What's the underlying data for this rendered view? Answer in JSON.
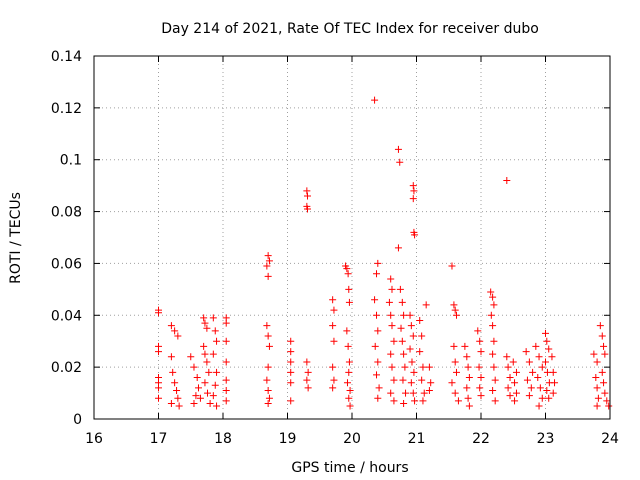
{
  "chart_data": {
    "type": "scatter",
    "title": "Day 214 of 2021, Rate Of TEC Index for receiver dubo",
    "xlabel": "GPS time / hours",
    "ylabel": "ROTI / TECUs",
    "xlim": [
      16,
      24
    ],
    "ylim": [
      0,
      0.14
    ],
    "xticks": [
      16,
      17,
      18,
      19,
      20,
      21,
      22,
      23,
      24
    ],
    "xtick_labels": [
      "16",
      "17",
      "18",
      "19",
      "20",
      "21",
      "22",
      "23",
      "24"
    ],
    "yticks": [
      0,
      0.02,
      0.04,
      0.06,
      0.08,
      0.1,
      0.12,
      0.14
    ],
    "ytick_labels": [
      "0",
      "0.02",
      "0.04",
      "0.06",
      "0.08",
      "0.1",
      "0.12",
      "0.14"
    ],
    "grid": true,
    "marker": "+",
    "color": "#ff0000",
    "series": [
      {
        "name": "ROTI",
        "points": [
          [
            17.0,
            0.042
          ],
          [
            17.0,
            0.041
          ],
          [
            17.0,
            0.028
          ],
          [
            17.0,
            0.026
          ],
          [
            17.0,
            0.016
          ],
          [
            17.0,
            0.014
          ],
          [
            17.0,
            0.012
          ],
          [
            17.0,
            0.008
          ],
          [
            17.2,
            0.036
          ],
          [
            17.25,
            0.034
          ],
          [
            17.3,
            0.032
          ],
          [
            17.2,
            0.024
          ],
          [
            17.22,
            0.018
          ],
          [
            17.25,
            0.014
          ],
          [
            17.28,
            0.011
          ],
          [
            17.3,
            0.008
          ],
          [
            17.32,
            0.005
          ],
          [
            17.2,
            0.006
          ],
          [
            17.5,
            0.024
          ],
          [
            17.55,
            0.02
          ],
          [
            17.6,
            0.016
          ],
          [
            17.62,
            0.012
          ],
          [
            17.58,
            0.009
          ],
          [
            17.55,
            0.006
          ],
          [
            17.65,
            0.008
          ],
          [
            17.7,
            0.039
          ],
          [
            17.72,
            0.037
          ],
          [
            17.75,
            0.035
          ],
          [
            17.7,
            0.028
          ],
          [
            17.72,
            0.025
          ],
          [
            17.75,
            0.022
          ],
          [
            17.78,
            0.018
          ],
          [
            17.72,
            0.014
          ],
          [
            17.76,
            0.01
          ],
          [
            17.8,
            0.006
          ],
          [
            17.85,
            0.039
          ],
          [
            17.88,
            0.034
          ],
          [
            17.9,
            0.03
          ],
          [
            17.85,
            0.025
          ],
          [
            17.9,
            0.018
          ],
          [
            17.88,
            0.013
          ],
          [
            17.85,
            0.009
          ],
          [
            17.9,
            0.005
          ],
          [
            18.05,
            0.039
          ],
          [
            18.05,
            0.037
          ],
          [
            18.05,
            0.03
          ],
          [
            18.05,
            0.022
          ],
          [
            18.05,
            0.015
          ],
          [
            18.05,
            0.011
          ],
          [
            18.05,
            0.007
          ],
          [
            18.7,
            0.063
          ],
          [
            18.72,
            0.061
          ],
          [
            18.68,
            0.059
          ],
          [
            18.7,
            0.055
          ],
          [
            18.68,
            0.036
          ],
          [
            18.7,
            0.032
          ],
          [
            18.72,
            0.028
          ],
          [
            18.7,
            0.02
          ],
          [
            18.68,
            0.015
          ],
          [
            18.7,
            0.011
          ],
          [
            18.72,
            0.008
          ],
          [
            18.7,
            0.006
          ],
          [
            19.05,
            0.03
          ],
          [
            19.05,
            0.026
          ],
          [
            19.05,
            0.022
          ],
          [
            19.05,
            0.018
          ],
          [
            19.05,
            0.014
          ],
          [
            19.05,
            0.007
          ],
          [
            19.3,
            0.088
          ],
          [
            19.31,
            0.086
          ],
          [
            19.3,
            0.082
          ],
          [
            19.31,
            0.081
          ],
          [
            19.3,
            0.022
          ],
          [
            19.32,
            0.018
          ],
          [
            19.3,
            0.015
          ],
          [
            19.32,
            0.012
          ],
          [
            19.7,
            0.046
          ],
          [
            19.72,
            0.042
          ],
          [
            19.7,
            0.036
          ],
          [
            19.72,
            0.03
          ],
          [
            19.7,
            0.02
          ],
          [
            19.72,
            0.015
          ],
          [
            19.7,
            0.012
          ],
          [
            19.9,
            0.059
          ],
          [
            19.92,
            0.058
          ],
          [
            19.94,
            0.056
          ],
          [
            19.95,
            0.05
          ],
          [
            19.96,
            0.045
          ],
          [
            19.92,
            0.034
          ],
          [
            19.94,
            0.028
          ],
          [
            19.96,
            0.022
          ],
          [
            19.95,
            0.018
          ],
          [
            19.93,
            0.014
          ],
          [
            19.97,
            0.011
          ],
          [
            19.95,
            0.008
          ],
          [
            19.97,
            0.005
          ],
          [
            20.35,
            0.123
          ],
          [
            20.4,
            0.06
          ],
          [
            20.38,
            0.056
          ],
          [
            20.35,
            0.046
          ],
          [
            20.38,
            0.04
          ],
          [
            20.4,
            0.034
          ],
          [
            20.36,
            0.028
          ],
          [
            20.4,
            0.022
          ],
          [
            20.38,
            0.017
          ],
          [
            20.42,
            0.012
          ],
          [
            20.4,
            0.008
          ],
          [
            20.6,
            0.054
          ],
          [
            20.62,
            0.05
          ],
          [
            20.58,
            0.045
          ],
          [
            20.6,
            0.04
          ],
          [
            20.62,
            0.036
          ],
          [
            20.65,
            0.03
          ],
          [
            20.6,
            0.025
          ],
          [
            20.62,
            0.02
          ],
          [
            20.65,
            0.015
          ],
          [
            20.6,
            0.01
          ],
          [
            20.65,
            0.007
          ],
          [
            20.72,
            0.104
          ],
          [
            20.74,
            0.099
          ],
          [
            20.72,
            0.066
          ],
          [
            20.75,
            0.05
          ],
          [
            20.78,
            0.045
          ],
          [
            20.8,
            0.04
          ],
          [
            20.76,
            0.035
          ],
          [
            20.78,
            0.03
          ],
          [
            20.8,
            0.025
          ],
          [
            20.82,
            0.02
          ],
          [
            20.79,
            0.015
          ],
          [
            20.83,
            0.01
          ],
          [
            20.8,
            0.006
          ],
          [
            20.9,
            0.04
          ],
          [
            20.92,
            0.036
          ],
          [
            20.95,
            0.032
          ],
          [
            20.9,
            0.027
          ],
          [
            20.93,
            0.022
          ],
          [
            20.96,
            0.018
          ],
          [
            20.92,
            0.014
          ],
          [
            20.95,
            0.01
          ],
          [
            20.97,
            0.007
          ],
          [
            20.95,
            0.09
          ],
          [
            20.96,
            0.088
          ],
          [
            20.95,
            0.085
          ],
          [
            20.96,
            0.072
          ],
          [
            20.97,
            0.071
          ],
          [
            21.05,
            0.038
          ],
          [
            21.08,
            0.032
          ],
          [
            21.05,
            0.026
          ],
          [
            21.1,
            0.02
          ],
          [
            21.08,
            0.015
          ],
          [
            21.12,
            0.01
          ],
          [
            21.1,
            0.007
          ],
          [
            21.15,
            0.044
          ],
          [
            21.2,
            0.02
          ],
          [
            21.22,
            0.014
          ],
          [
            21.2,
            0.011
          ],
          [
            21.55,
            0.059
          ],
          [
            21.58,
            0.044
          ],
          [
            21.6,
            0.042
          ],
          [
            21.62,
            0.04
          ],
          [
            21.58,
            0.028
          ],
          [
            21.6,
            0.022
          ],
          [
            21.62,
            0.018
          ],
          [
            21.55,
            0.014
          ],
          [
            21.6,
            0.01
          ],
          [
            21.65,
            0.007
          ],
          [
            21.75,
            0.028
          ],
          [
            21.78,
            0.024
          ],
          [
            21.8,
            0.02
          ],
          [
            21.82,
            0.016
          ],
          [
            21.78,
            0.012
          ],
          [
            21.8,
            0.008
          ],
          [
            21.82,
            0.005
          ],
          [
            21.95,
            0.034
          ],
          [
            21.98,
            0.03
          ],
          [
            22.0,
            0.026
          ],
          [
            21.97,
            0.02
          ],
          [
            22.0,
            0.016
          ],
          [
            21.98,
            0.012
          ],
          [
            22.0,
            0.009
          ],
          [
            22.15,
            0.049
          ],
          [
            22.18,
            0.047
          ],
          [
            22.2,
            0.044
          ],
          [
            22.16,
            0.04
          ],
          [
            22.18,
            0.036
          ],
          [
            22.2,
            0.03
          ],
          [
            22.18,
            0.025
          ],
          [
            22.2,
            0.02
          ],
          [
            22.22,
            0.015
          ],
          [
            22.18,
            0.011
          ],
          [
            22.22,
            0.007
          ],
          [
            22.4,
            0.092
          ],
          [
            22.4,
            0.024
          ],
          [
            22.42,
            0.02
          ],
          [
            22.45,
            0.016
          ],
          [
            22.42,
            0.012
          ],
          [
            22.45,
            0.009
          ],
          [
            22.5,
            0.022
          ],
          [
            22.55,
            0.018
          ],
          [
            22.52,
            0.014
          ],
          [
            22.55,
            0.01
          ],
          [
            22.52,
            0.007
          ],
          [
            22.7,
            0.026
          ],
          [
            22.75,
            0.022
          ],
          [
            22.8,
            0.018
          ],
          [
            22.72,
            0.015
          ],
          [
            22.78,
            0.012
          ],
          [
            22.75,
            0.009
          ],
          [
            22.85,
            0.028
          ],
          [
            22.9,
            0.024
          ],
          [
            22.95,
            0.02
          ],
          [
            22.88,
            0.016
          ],
          [
            22.92,
            0.012
          ],
          [
            22.95,
            0.008
          ],
          [
            22.9,
            0.005
          ],
          [
            23.0,
            0.033
          ],
          [
            23.02,
            0.03
          ],
          [
            23.05,
            0.027
          ],
          [
            23.0,
            0.022
          ],
          [
            23.03,
            0.018
          ],
          [
            23.06,
            0.014
          ],
          [
            23.02,
            0.011
          ],
          [
            23.05,
            0.008
          ],
          [
            23.1,
            0.024
          ],
          [
            23.12,
            0.018
          ],
          [
            23.14,
            0.014
          ],
          [
            23.12,
            0.01
          ],
          [
            23.75,
            0.025
          ],
          [
            23.8,
            0.022
          ],
          [
            23.78,
            0.016
          ],
          [
            23.8,
            0.012
          ],
          [
            23.82,
            0.008
          ],
          [
            23.8,
            0.005
          ],
          [
            23.85,
            0.036
          ],
          [
            23.88,
            0.032
          ],
          [
            23.9,
            0.028
          ],
          [
            23.92,
            0.025
          ],
          [
            23.88,
            0.018
          ],
          [
            23.9,
            0.014
          ],
          [
            23.92,
            0.01
          ],
          [
            23.95,
            0.007
          ],
          [
            23.98,
            0.005
          ]
        ]
      }
    ]
  }
}
